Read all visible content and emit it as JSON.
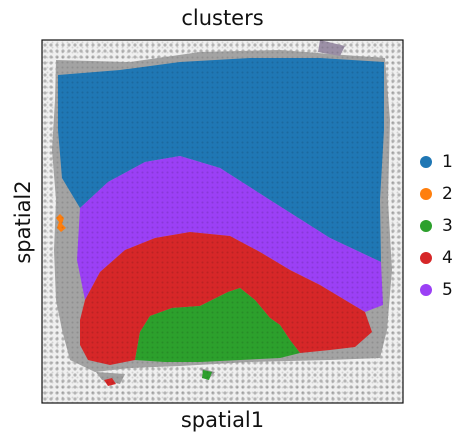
{
  "chart_data": {
    "type": "scatter",
    "title": "clusters",
    "xlabel": "spatial1",
    "ylabel": "spatial2",
    "legend_position": "right",
    "background_image": "grey tissue section with spot grid",
    "series": [
      {
        "name": "1",
        "color": "#1f77b4"
      },
      {
        "name": "2",
        "color": "#ff7f0e"
      },
      {
        "name": "3",
        "color": "#2ca02c"
      },
      {
        "name": "4",
        "color": "#d62728"
      },
      {
        "name": "5",
        "color": "#9b40f5"
      }
    ]
  }
}
